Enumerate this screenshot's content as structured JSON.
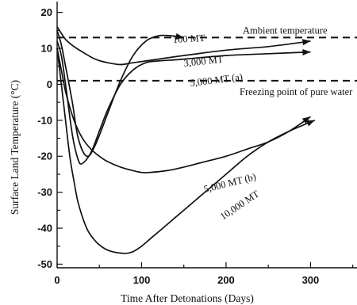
{
  "chart_data": {
    "type": "line",
    "xlabel": "Time After Detonations  (Days)",
    "ylabel": "Surface Land Temperature  (°C)",
    "xlim": [
      0,
      355
    ],
    "ylim": [
      -51,
      23
    ],
    "xticks": [
      0,
      100,
      200,
      300
    ],
    "yticks": [
      20,
      10,
      0,
      -10,
      -20,
      -30,
      -40,
      -50
    ],
    "reference_lines": [
      {
        "label": "Ambient temperature",
        "y": 13
      },
      {
        "label": "Freezing point of pure water",
        "y": 1
      }
    ],
    "series": [
      {
        "name": "100 MT",
        "label_angle": -3,
        "x": [
          0,
          5,
          10,
          18,
          25,
          35,
          45,
          60,
          75,
          90,
          105,
          120,
          135,
          150
        ],
        "y": [
          15,
          11,
          5,
          -5,
          -15,
          -20,
          -17,
          -8,
          1,
          8,
          12,
          13.5,
          13.5,
          13
        ]
      },
      {
        "name": "3,000 MT",
        "label_angle": -6,
        "x": [
          0,
          10,
          20,
          30,
          45,
          60,
          75,
          90,
          120,
          150,
          200,
          250,
          300
        ],
        "y": [
          16,
          12.5,
          10.5,
          9,
          7,
          6,
          5.5,
          6,
          7,
          8,
          9.5,
          10.5,
          12
        ]
      },
      {
        "name": "5,000 MT (a)",
        "label_angle": -7,
        "x": [
          0,
          5,
          10,
          18,
          25,
          30,
          40,
          50,
          60,
          75,
          90,
          105,
          120,
          150,
          200,
          250,
          300
        ],
        "y": [
          12,
          8,
          0,
          -14,
          -21,
          -22,
          -19,
          -13,
          -7,
          0,
          4,
          6,
          6.5,
          7,
          8,
          8.5,
          9
        ]
      },
      {
        "name": "5,000 MT (b)",
        "label_angle": -14,
        "x": [
          0,
          5,
          10,
          20,
          30,
          40,
          50,
          60,
          75,
          90,
          100,
          110,
          130,
          150,
          175,
          200,
          225,
          250,
          275,
          300
        ],
        "y": [
          10,
          4,
          -2,
          -10,
          -15,
          -18,
          -20,
          -21.5,
          -23,
          -24,
          -24.5,
          -24.5,
          -24,
          -23,
          -21.5,
          -20,
          -18,
          -16,
          -13,
          -9
        ]
      },
      {
        "name": "10,000 MT",
        "label_angle": -34,
        "x": [
          0,
          5,
          10,
          15,
          20,
          25,
          35,
          45,
          55,
          65,
          80,
          90,
          100,
          110,
          125,
          150,
          175,
          200,
          225,
          250,
          275,
          305
        ],
        "y": [
          10,
          0,
          -10,
          -20,
          -27,
          -33,
          -40,
          -43.5,
          -45.5,
          -46.5,
          -47,
          -46.5,
          -45,
          -43,
          -40,
          -35,
          -30,
          -25,
          -20,
          -16,
          -13,
          -10
        ]
      }
    ]
  }
}
